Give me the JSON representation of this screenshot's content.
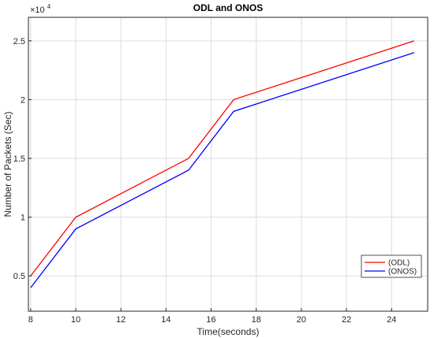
{
  "chart_data": {
    "type": "line",
    "title": "ODL and ONOS",
    "xlabel": "Time(seconds)",
    "ylabel": "Number of Packets (Sec)",
    "y_exponent_label": "×10",
    "y_exponent_power": "4",
    "xlim": [
      7.9,
      25.6
    ],
    "ylim": [
      0.2,
      2.7
    ],
    "xticks": [
      8,
      10,
      12,
      14,
      16,
      18,
      20,
      22,
      24
    ],
    "yticks": [
      0.5,
      1,
      1.5,
      2,
      2.5
    ],
    "ytick_labels": [
      "0.5",
      "1",
      "1.5",
      "2",
      "2.5"
    ],
    "grid": true,
    "legend_position": "bottom-right",
    "series": [
      {
        "name": "(ODL)",
        "color": "#ff0000",
        "x": [
          8,
          10,
          15,
          17,
          25
        ],
        "y": [
          0.5,
          1.0,
          1.5,
          2.0,
          2.5
        ]
      },
      {
        "name": "(ONOS)",
        "color": "#0000ff",
        "x": [
          8,
          10,
          15,
          17,
          25
        ],
        "y": [
          0.4,
          0.9,
          1.4,
          1.9,
          2.4
        ]
      }
    ]
  }
}
